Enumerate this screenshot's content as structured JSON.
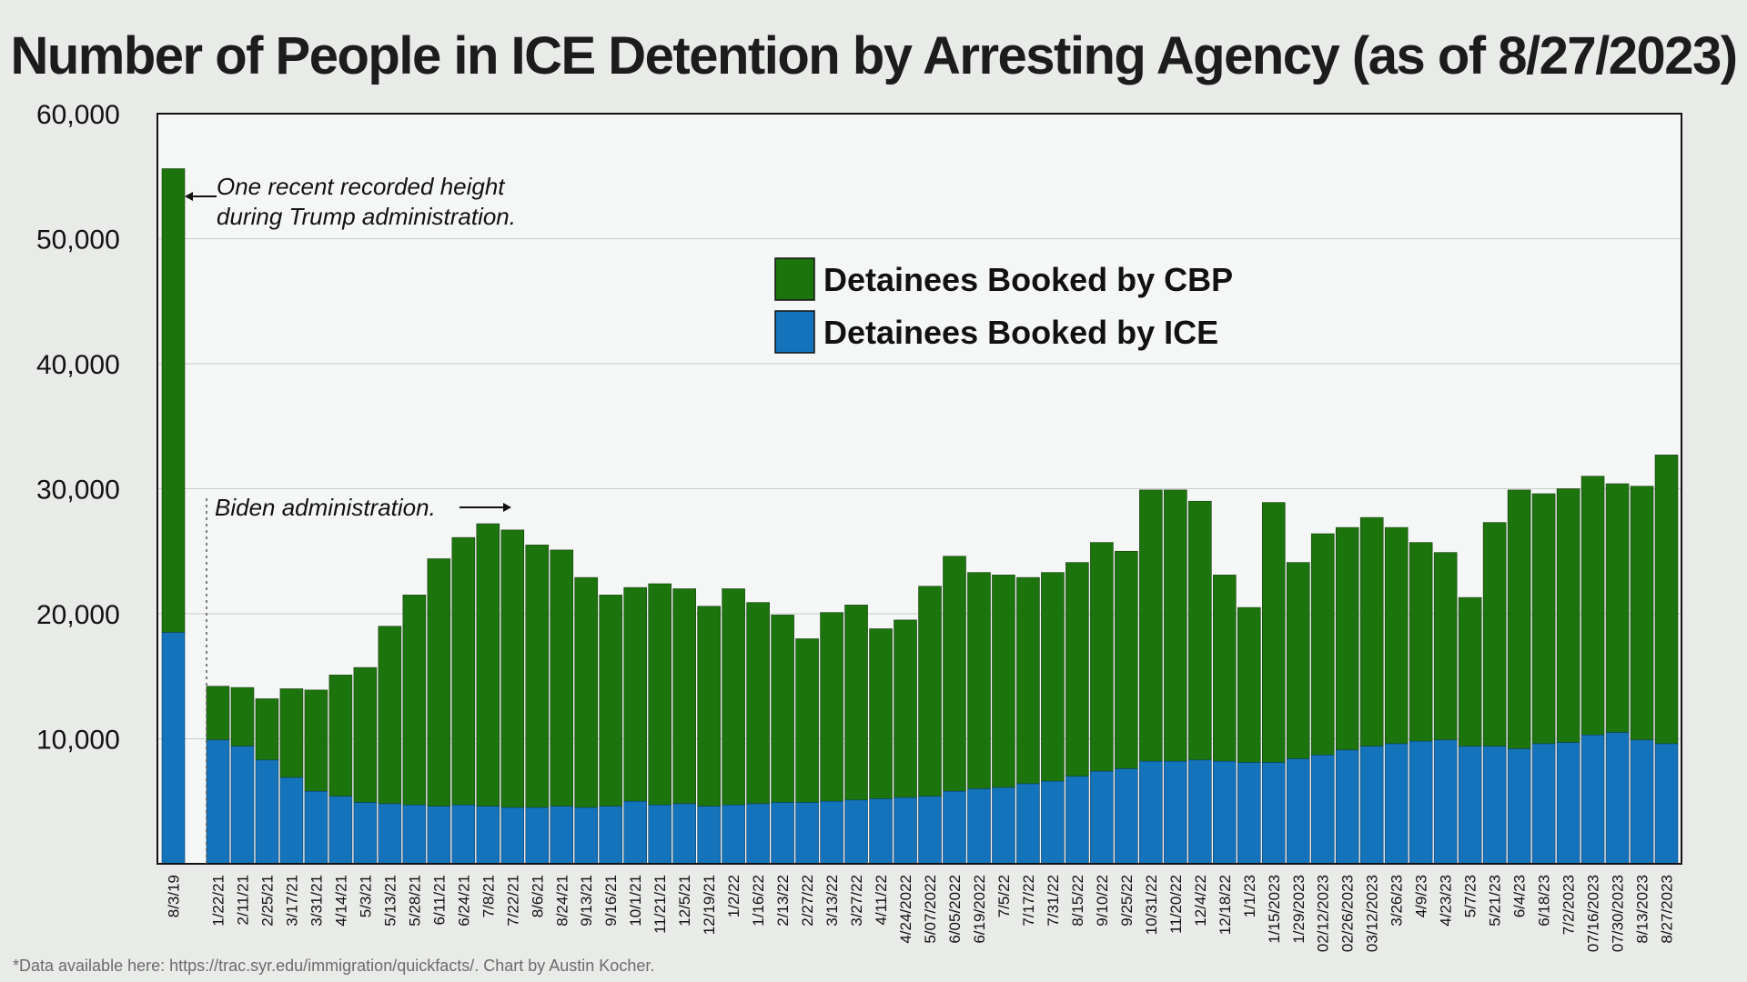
{
  "chart_data": {
    "type": "bar",
    "stacked": true,
    "title": "Number of People in ICE Detention by Arresting Agency (as of 8/27/2023)",
    "ylim": [
      0,
      60000
    ],
    "yticks": [
      "60,000",
      "50,000",
      "40,000",
      "30,000",
      "20,000",
      "10,000"
    ],
    "ytick_values": [
      60000,
      50000,
      40000,
      30000,
      20000,
      10000
    ],
    "grid": true,
    "legend_position": "upper-center",
    "categories": [
      "8/3/19",
      "1/22/21",
      "2/11/21",
      "2/25/21",
      "3/17/21",
      "3/31/21",
      "4/14/21",
      "5/3/21",
      "5/13/21",
      "5/28/21",
      "6/11/21",
      "6/24/21",
      "7/8/21",
      "7/22/21",
      "8/6/21",
      "8/24/21",
      "9/13/21",
      "9/16/21",
      "10/1/21",
      "11/21/21",
      "12/5/21",
      "12/19/21",
      "1/2/22",
      "1/16/22",
      "2/13/22",
      "2/27/22",
      "3/13/22",
      "3/27/22",
      "4/11/22",
      "4/24/2022",
      "5/07/2022",
      "6/05/2022",
      "6/19/2022",
      "7/5/22",
      "7/17/22",
      "7/31/22",
      "8/15/22",
      "9/10/22",
      "9/25/22",
      "10/31/22",
      "11/20/22",
      "12/4/22",
      "12/18/22",
      "1/1/23",
      "1/15/2023",
      "1/29/2023",
      "02/12/2023",
      "02/26/2023",
      "03/12/2023",
      "3/26/23",
      "4/9/23",
      "4/23/23",
      "5/7/23",
      "5/21/23",
      "6/4/23",
      "6/18/23",
      "7/2/2023",
      "07/16/2023",
      "07/30/2023",
      "8/13/2023",
      "8/27/2023"
    ],
    "series": [
      {
        "name": "Detainees Booked by ICE",
        "color": "#1474bb",
        "values": [
          18500,
          9900,
          9400,
          8300,
          6900,
          5800,
          5400,
          4900,
          4800,
          4700,
          4600,
          4700,
          4600,
          4500,
          4500,
          4600,
          4500,
          4600,
          5000,
          4700,
          4800,
          4600,
          4700,
          4800,
          4900,
          4900,
          5000,
          5100,
          5200,
          5300,
          5400,
          5800,
          6000,
          6100,
          6400,
          6600,
          7000,
          7400,
          7600,
          8200,
          8200,
          8300,
          8200,
          8100,
          8100,
          8400,
          8700,
          9100,
          9400,
          9600,
          9800,
          9900,
          9400,
          9400,
          9200,
          9600,
          9700,
          10300,
          10500,
          9900,
          9600
        ]
      },
      {
        "name": "Detainees Booked by CBP",
        "color": "#1c740c",
        "values": [
          37100,
          4300,
          4700,
          4900,
          7100,
          8100,
          9700,
          10800,
          14200,
          16800,
          19800,
          21400,
          22600,
          22200,
          21000,
          20500,
          18400,
          16900,
          17100,
          17700,
          17200,
          16000,
          17300,
          16100,
          15000,
          13100,
          15100,
          15600,
          13600,
          14200,
          16800,
          18800,
          17300,
          17000,
          16500,
          16700,
          17100,
          18300,
          17400,
          21700,
          21700,
          20700,
          14900,
          12400,
          20800,
          15700,
          17700,
          17800,
          18300,
          17300,
          15900,
          15000,
          11900,
          17900,
          20700,
          20000,
          20300,
          20700,
          19900,
          20300,
          23100
        ]
      }
    ],
    "legend": [
      "Detainees Booked by CBP",
      "Detainees Booked by ICE"
    ],
    "annotations": [
      {
        "id": "trump",
        "lines": [
          "One recent recorded height",
          "during Trump administration."
        ]
      },
      {
        "id": "biden",
        "text": "Biden administration."
      }
    ]
  },
  "footnote": "*Data available here: https://trac.syr.edu/immigration/quickfacts/. Chart by Austin Kocher."
}
